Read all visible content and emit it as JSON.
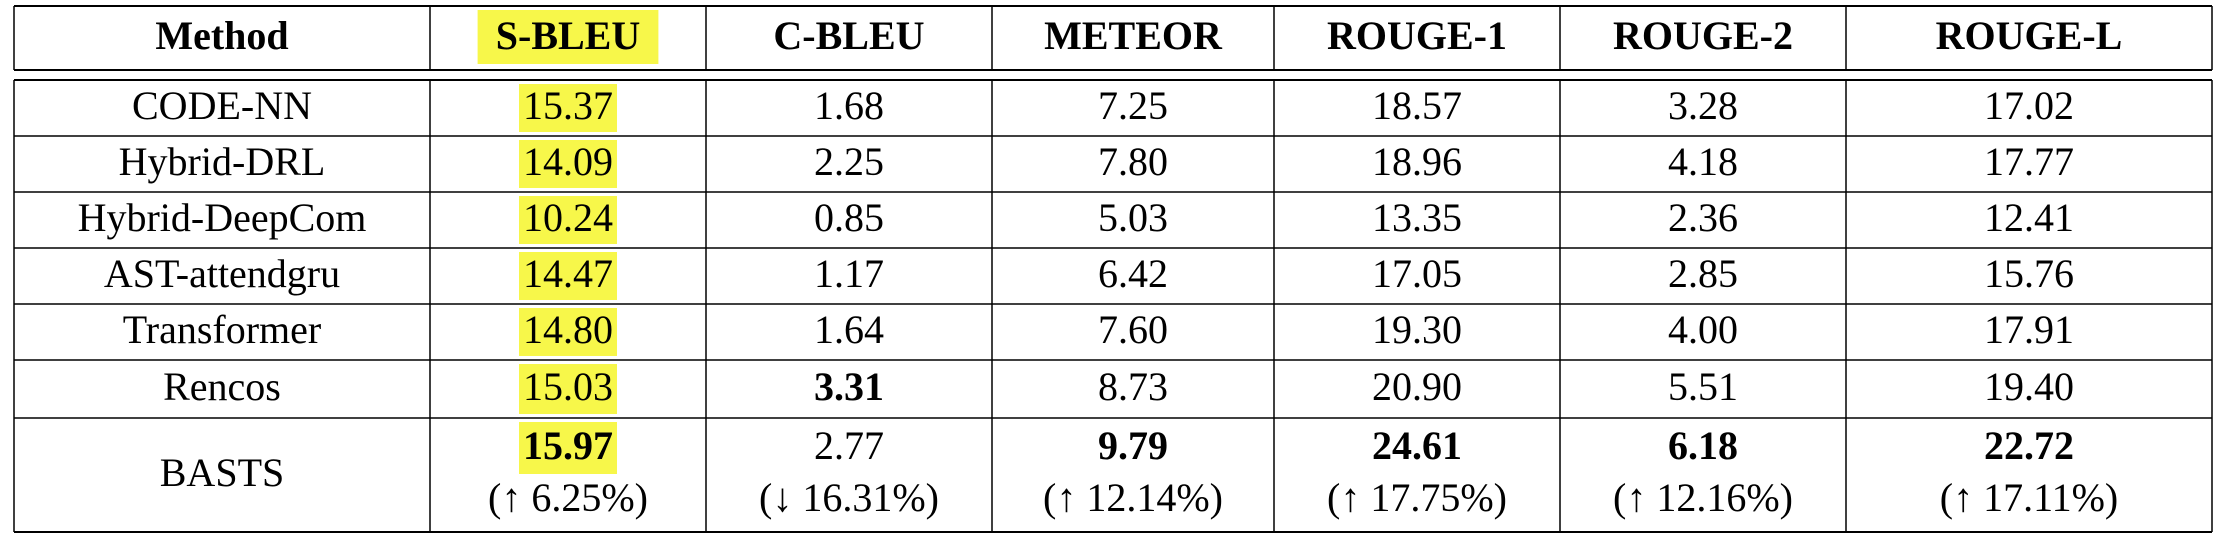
{
  "table": {
    "columns": [
      "Method",
      "S-BLEU",
      "C-BLEU",
      "METEOR",
      "ROUGE-1",
      "ROUGE-2",
      "ROUGE-L"
    ],
    "highlighted_column": "S-BLEU",
    "highlight_color": "#f7f74a",
    "rows": [
      {
        "method": "CODE-NN",
        "values": [
          "15.37",
          "1.68",
          "7.25",
          "18.57",
          "3.28",
          "17.02"
        ],
        "bold": [
          false,
          false,
          false,
          false,
          false,
          false
        ]
      },
      {
        "method": "Hybrid-DRL",
        "values": [
          "14.09",
          "2.25",
          "7.80",
          "18.96",
          "4.18",
          "17.77"
        ],
        "bold": [
          false,
          false,
          false,
          false,
          false,
          false
        ]
      },
      {
        "method": "Hybrid-DeepCom",
        "values": [
          "10.24",
          "0.85",
          "5.03",
          "13.35",
          "2.36",
          "12.41"
        ],
        "bold": [
          false,
          false,
          false,
          false,
          false,
          false
        ]
      },
      {
        "method": "AST-attendgru",
        "values": [
          "14.47",
          "1.17",
          "6.42",
          "17.05",
          "2.85",
          "15.76"
        ],
        "bold": [
          false,
          false,
          false,
          false,
          false,
          false
        ]
      },
      {
        "method": "Transformer",
        "values": [
          "14.80",
          "1.64",
          "7.60",
          "19.30",
          "4.00",
          "17.91"
        ],
        "bold": [
          false,
          false,
          false,
          false,
          false,
          false
        ]
      },
      {
        "method": "Rencos",
        "values": [
          "15.03",
          "3.31",
          "8.73",
          "20.90",
          "5.51",
          "19.40"
        ],
        "bold": [
          false,
          true,
          false,
          false,
          false,
          false
        ]
      },
      {
        "method": "BASTS",
        "values": [
          "15.97",
          "2.77",
          "9.79",
          "24.61",
          "6.18",
          "22.72"
        ],
        "bold": [
          true,
          false,
          true,
          true,
          true,
          true
        ],
        "changes": [
          "(↑ 6.25%)",
          "(↓ 16.31%)",
          "(↑ 12.14%)",
          "(↑ 17.75%)",
          "(↑ 12.16%)",
          "(↑ 17.11%)"
        ]
      }
    ]
  }
}
